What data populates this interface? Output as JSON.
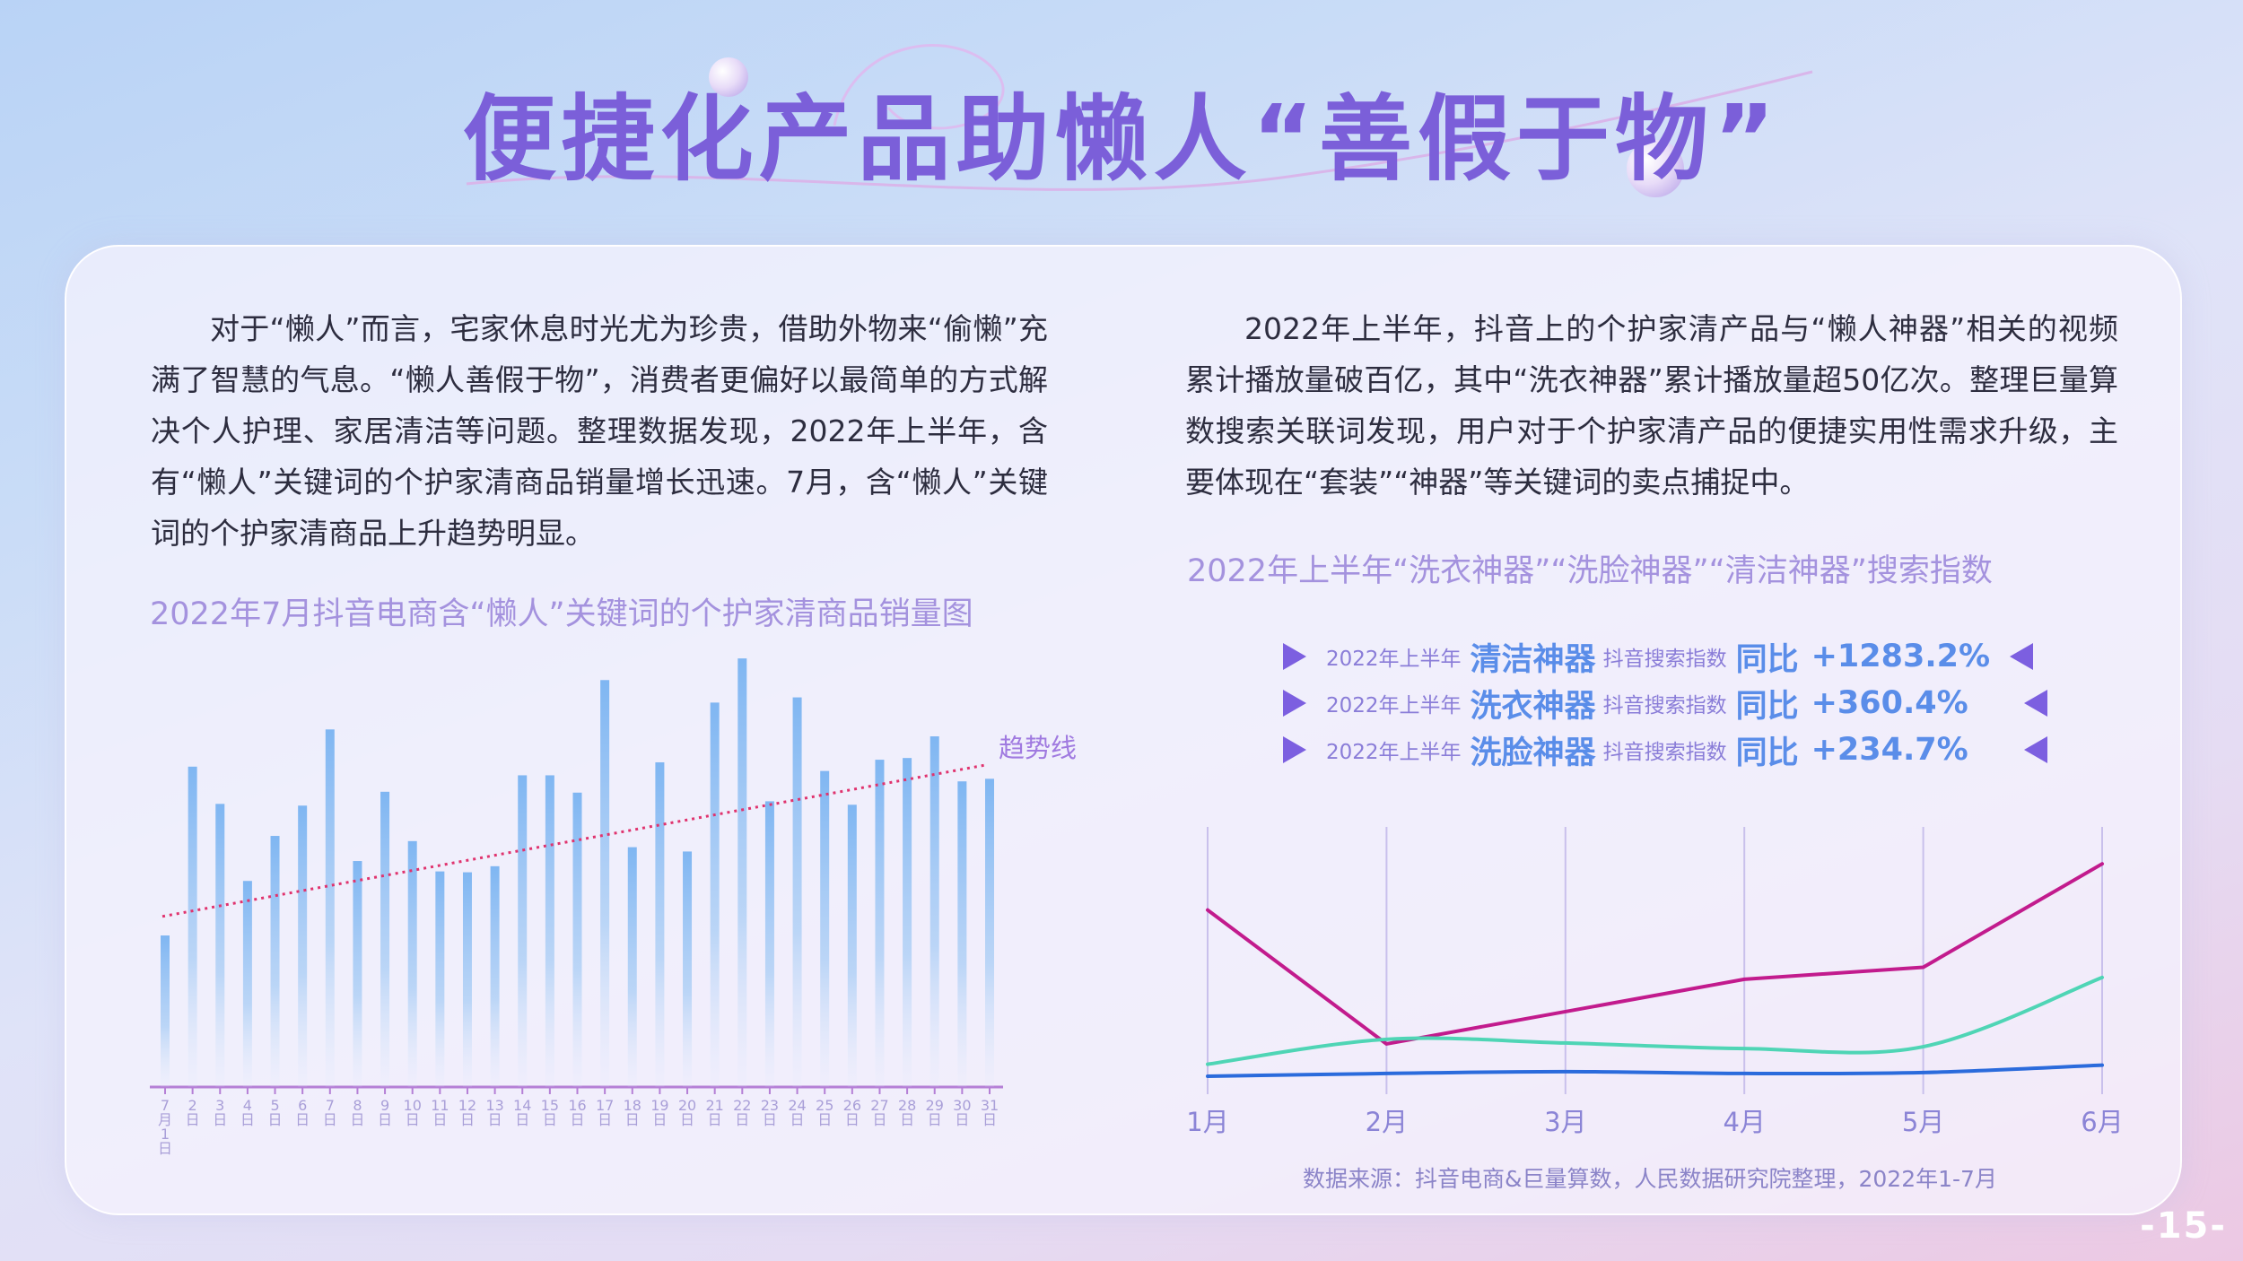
{
  "title": "便捷化产品助懒人“善假于物”",
  "left_paragraph": "对于“懒人”而言，宅家休息时光尤为珍贵，借助外物来“偷懒”充满了智慧的气息。“懒人善假于物”，消费者更偏好以最简单的方式解决个人护理、家居清洁等问题。整理数据发现，2022年上半年，含有“懒人”关键词的个护家清商品销量增长迅速。7月，含“懒人”关键词的个护家清商品上升趋势明显。",
  "right_paragraph": "2022年上半年，抖音上的个护家清产品与“懒人神器”相关的视频累计播放量破百亿，其中“洗衣神器”累计播放量超50亿次。整理巨量算数搜索关联词发现，用户对于个护家清产品的便捷实用性需求升级，主要体现在“套装”“神器”等关键词的卖点捕捉中。",
  "stats": [
    {
      "prefix": "2022年上半年",
      "keyword": "清洁神器",
      "middle": "抖音搜索指数",
      "label": "同比",
      "value": "+1283.2%"
    },
    {
      "prefix": "2022年上半年",
      "keyword": "洗衣神器",
      "middle": "抖音搜索指数",
      "label": "同比",
      "value": "+360.4%"
    },
    {
      "prefix": "2022年上半年",
      "keyword": "洗脸神器",
      "middle": "抖音搜索指数",
      "label": "同比",
      "value": "+234.7%"
    }
  ],
  "source": "数据来源：抖音电商&巨量算数，人民数据研究院整理，2022年1-7月",
  "page_number": "-15-",
  "colors": {
    "title": "#7b5fd9",
    "bar": "#7fb6f2",
    "trend": "#e0336e",
    "accent": "#5a8de9"
  },
  "icons": [
    "arrow-right-icon",
    "arrow-left-icon"
  ],
  "chart_data": [
    {
      "type": "bar",
      "title": "2022年7月抖音电商含“懒人”关键词的个护家清商品销量图",
      "categories": [
        "7月1日",
        "2日",
        "3日",
        "4日",
        "5日",
        "6日",
        "7日",
        "8日",
        "9日",
        "10日",
        "11日",
        "12日",
        "13日",
        "14日",
        "15日",
        "16日",
        "17日",
        "18日",
        "19日",
        "20日",
        "21日",
        "22日",
        "23日",
        "24日",
        "25日",
        "26日",
        "27日",
        "28日",
        "29日",
        "30日",
        "31日"
      ],
      "values": [
        175,
        370,
        327,
        238,
        290,
        325,
        413,
        261,
        341,
        284,
        249,
        248,
        255,
        360,
        360,
        340,
        470,
        277,
        375,
        272,
        444,
        495,
        330,
        450,
        365,
        326,
        378,
        380,
        405,
        353,
        356
      ],
      "ylim": [
        0,
        520
      ],
      "trendline": {
        "label": "趋势线",
        "start": 197,
        "end": 372
      },
      "grid": false
    },
    {
      "type": "line",
      "title": "2022年上半年“洗衣神器”“洗脸神器”“清洁神器”搜索指数",
      "x": [
        "1月",
        "2月",
        "3月",
        "4月",
        "5月",
        "6月"
      ],
      "series": [
        {
          "values": [
            180,
            35,
            70,
            105,
            118,
            230
          ],
          "color": "#c21b8d"
        },
        {
          "values": [
            13,
            40,
            36,
            30,
            32,
            107
          ],
          "color": "#4fd5b5"
        },
        {
          "values": [
            0,
            3,
            5,
            3,
            4,
            12
          ],
          "color": "#2b6bdc"
        }
      ],
      "ylim": [
        0,
        270
      ],
      "grid": "vertical"
    }
  ]
}
